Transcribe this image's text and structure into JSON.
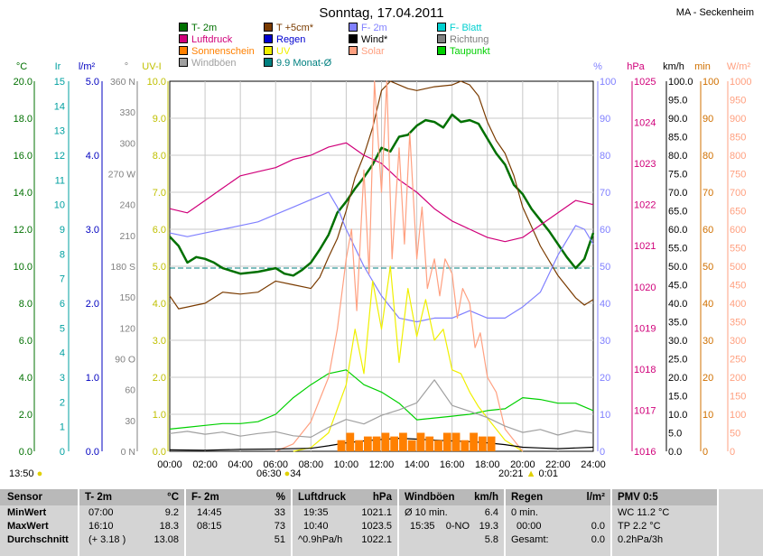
{
  "title": "Sonntag, 17.04.2011",
  "station": "MA - Seckenheim",
  "legend": [
    {
      "label": "T- 2m",
      "color": "#007000"
    },
    {
      "label": "T +5cm*",
      "color": "#7a3b00"
    },
    {
      "label": "F- 2m",
      "color": "#8080ff"
    },
    {
      "label": "F- Blatt",
      "color": "#00d0d0"
    },
    {
      "label": "Luftdruck",
      "color": "#d0007a"
    },
    {
      "label": "Regen",
      "color": "#0000d0"
    },
    {
      "label": "Wind*",
      "color": "#000000"
    },
    {
      "label": "Richtung",
      "color": "#808080"
    },
    {
      "label": "Sonnenschein",
      "color": "#ff8000"
    },
    {
      "label": "UV",
      "color": "#f0f000"
    },
    {
      "label": "Solar",
      "color": "#ffa080"
    },
    {
      "label": "Taupunkt",
      "color": "#00d000"
    },
    {
      "label": "Windböen",
      "color": "#a0a0a0"
    },
    {
      "label": "9.9 Monat-Ø",
      "color": "#008080"
    }
  ],
  "axes": {
    "temp": {
      "unit": "°C",
      "color": "#007000",
      "ticks": [
        "20.0",
        "18.0",
        "16.0",
        "14.0",
        "12.0",
        "10.0",
        "8.0",
        "6.0",
        "4.0",
        "2.0",
        "0.0"
      ]
    },
    "rain_ir": {
      "unit": "Ir",
      "color": "#00a0a0",
      "ticks": [
        "15",
        "14",
        "13",
        "12",
        "11",
        "10",
        "9",
        "8",
        "7",
        "6",
        "5",
        "4",
        "3",
        "2",
        "1",
        "0"
      ]
    },
    "rain": {
      "unit": "l/m²",
      "color": "#0000c0",
      "ticks": [
        "5.0",
        "4.0",
        "3.0",
        "2.0",
        "1.0",
        "0.0"
      ]
    },
    "dir": {
      "unit": "°",
      "color": "#808080",
      "ticks": [
        "360 N",
        "330",
        "300",
        "270 W",
        "240",
        "210",
        "180 S",
        "150",
        "120",
        "90 O",
        "60",
        "30",
        "0 N"
      ]
    },
    "uv": {
      "unit": "UV-I",
      "color": "#c0c000",
      "ticks": [
        "10.0",
        "9.0",
        "8.0",
        "7.0",
        "6.0",
        "5.0",
        "4.0",
        "3.0",
        "2.0",
        "1.0",
        "0.0"
      ]
    },
    "hum": {
      "unit": "%",
      "color": "#8080ff",
      "ticks": [
        "100",
        "90",
        "80",
        "70",
        "60",
        "50",
        "40",
        "30",
        "20",
        "10",
        "0"
      ]
    },
    "press": {
      "unit": "hPa",
      "color": "#d0007a",
      "ticks": [
        "1025",
        "1024",
        "1023",
        "1022",
        "1021",
        "1020",
        "1019",
        "1018",
        "1017",
        "1016"
      ]
    },
    "wind": {
      "unit": "km/h",
      "color": "#000000",
      "ticks": [
        "100.0",
        "95.0",
        "90.0",
        "85.0",
        "80.0",
        "75.0",
        "70.0",
        "65.0",
        "60.0",
        "55.0",
        "50.0",
        "45.0",
        "40.0",
        "35.0",
        "30.0",
        "25.0",
        "20.0",
        "15.0",
        "10.0",
        "5.0",
        "0.0"
      ]
    },
    "sunmin": {
      "unit": "min",
      "color": "#d07000",
      "ticks": [
        "100",
        "90",
        "80",
        "70",
        "60",
        "50",
        "40",
        "30",
        "20",
        "10",
        "0"
      ]
    },
    "solar": {
      "unit": "W/m²",
      "color": "#ffa080",
      "ticks": [
        "1000",
        "950",
        "900",
        "850",
        "800",
        "750",
        "700",
        "650",
        "600",
        "550",
        "500",
        "450",
        "400",
        "350",
        "300",
        "250",
        "200",
        "150",
        "100",
        "50",
        "0"
      ]
    }
  },
  "x_ticks": [
    "00:00",
    "02:00",
    "04:00",
    "06:00",
    "08:00",
    "10:00",
    "12:00",
    "14:00",
    "16:00",
    "18:00",
    "20:00",
    "22:00",
    "24:00"
  ],
  "sun_events": {
    "rise_moon": "13:50",
    "sunrise": "06:30",
    "sunrise_az": "34",
    "sunset": "20:21",
    "moonset": "0:01"
  },
  "chart_data": {
    "type": "line",
    "x_range": [
      0,
      24
    ],
    "ylim_temp": [
      0,
      20
    ],
    "series": [
      {
        "name": "T- 2m",
        "axis": "temp",
        "x": [
          0,
          0.5,
          1,
          1.5,
          2,
          2.5,
          3,
          4,
          5,
          6,
          6.5,
          7,
          7.5,
          8,
          8.5,
          9,
          9.5,
          10,
          10.5,
          11,
          11.5,
          12,
          12.5,
          13,
          13.5,
          14,
          14.5,
          15,
          15.5,
          16,
          16.5,
          17,
          17.5,
          18,
          18.5,
          19,
          19.5,
          20,
          20.5,
          21,
          21.5,
          22,
          22.5,
          23,
          23.5,
          24
        ],
        "values": [
          11.6,
          11.1,
          10.2,
          10.5,
          10.4,
          10.2,
          9.9,
          9.6,
          9.7,
          9.9,
          9.6,
          9.5,
          9.8,
          10.2,
          10.9,
          11.7,
          12.9,
          13.5,
          14.2,
          14.8,
          15.5,
          16.4,
          16.2,
          17.0,
          17.1,
          17.6,
          17.9,
          17.8,
          17.5,
          18.2,
          17.8,
          17.9,
          17.7,
          16.9,
          16.1,
          15.5,
          14.4,
          13.9,
          13.1,
          12.5,
          11.9,
          11.2,
          10.5,
          9.9,
          10.4,
          11.8
        ]
      },
      {
        "name": "T +5cm*",
        "axis": "temp",
        "x": [
          0,
          0.5,
          1,
          1.5,
          2,
          3,
          4,
          5,
          6,
          7,
          8,
          8.5,
          9,
          9.5,
          10,
          10.5,
          11,
          11.5,
          12,
          12.5,
          13,
          13.5,
          14,
          15,
          16,
          16.5,
          17,
          17.5,
          18,
          18.5,
          19,
          19.5,
          20,
          21,
          22,
          23,
          23.5,
          24
        ],
        "values": [
          8.4,
          7.7,
          7.8,
          7.9,
          8.0,
          8.6,
          8.5,
          8.6,
          9.2,
          9.0,
          8.8,
          9.4,
          10.5,
          11.5,
          13.0,
          14.8,
          16.0,
          17.5,
          19.5,
          20.0,
          19.8,
          19.6,
          19.5,
          19.7,
          19.8,
          20.0,
          19.8,
          19.2,
          17.8,
          16.8,
          16.1,
          14.9,
          13.2,
          11.1,
          9.5,
          8.3,
          7.9,
          8.2
        ]
      },
      {
        "name": "F- 2m",
        "axis": "hum",
        "x": [
          0,
          1,
          2,
          3,
          4,
          5,
          6,
          7,
          8,
          9,
          9.5,
          10,
          10.5,
          11,
          12,
          13,
          14,
          15,
          16,
          17,
          18,
          19,
          20,
          21,
          22,
          23,
          23.5,
          24
        ],
        "values": [
          59,
          58,
          59,
          60,
          61,
          62,
          64,
          66,
          68,
          70,
          66,
          60,
          55,
          50,
          42,
          36,
          35,
          36,
          36,
          38,
          36,
          36,
          39,
          43,
          53,
          61,
          60,
          56
        ]
      },
      {
        "name": "Luftdruck",
        "axis": "press",
        "x": [
          0,
          1,
          2,
          3,
          4,
          5,
          6,
          7,
          8,
          9,
          10,
          11,
          12,
          13,
          14,
          15,
          16,
          17,
          18,
          19,
          20,
          21,
          22,
          23,
          24
        ],
        "values": [
          1021.9,
          1021.8,
          1022.1,
          1022.4,
          1022.7,
          1022.8,
          1022.9,
          1023.1,
          1023.2,
          1023.4,
          1023.5,
          1023.2,
          1023.0,
          1022.6,
          1022.3,
          1021.9,
          1021.6,
          1021.4,
          1021.2,
          1021.1,
          1021.2,
          1021.5,
          1021.8,
          1022.1,
          1022.0
        ]
      },
      {
        "name": "Taupunkt",
        "axis": "temp",
        "x": [
          0,
          1,
          2,
          3,
          4,
          5,
          6,
          7,
          8,
          9,
          10,
          11,
          12,
          13,
          14,
          15,
          16,
          17,
          18,
          19,
          20,
          21,
          22,
          23,
          24
        ],
        "values": [
          1.2,
          1.3,
          1.4,
          1.5,
          1.5,
          1.6,
          2.0,
          2.9,
          3.6,
          4.2,
          4.4,
          3.6,
          3.2,
          2.6,
          1.7,
          1.8,
          1.9,
          2.0,
          2.2,
          2.3,
          2.9,
          2.8,
          2.6,
          2.6,
          2.2
        ]
      },
      {
        "name": "UV",
        "axis": "uv",
        "x": [
          7,
          8,
          9,
          10,
          10.5,
          11,
          11.5,
          12,
          12.5,
          13,
          13.5,
          14,
          14.5,
          15,
          15.5,
          16,
          16.5,
          17,
          17.5,
          18,
          19,
          20
        ],
        "values": [
          0,
          0.1,
          0.5,
          1.8,
          3.3,
          2.1,
          4.6,
          3.3,
          5.0,
          2.4,
          4.4,
          3.1,
          4.1,
          3.0,
          3.3,
          2.2,
          2.1,
          1.6,
          1.2,
          0.9,
          0.3,
          0
        ]
      },
      {
        "name": "Solar",
        "axis": "solar",
        "x": [
          6,
          7,
          8,
          9,
          9.5,
          10,
          10.3,
          10.6,
          11,
          11.3,
          11.6,
          12,
          12.3,
          12.6,
          13,
          13.3,
          13.6,
          14,
          14.3,
          14.6,
          15,
          15.3,
          15.6,
          16,
          16.3,
          16.6,
          17,
          17.3,
          17.6,
          18,
          18.5,
          19,
          20
        ],
        "values": [
          0,
          20,
          80,
          200,
          330,
          520,
          600,
          380,
          760,
          480,
          1000,
          700,
          1000,
          520,
          820,
          560,
          860,
          520,
          660,
          440,
          520,
          420,
          520,
          480,
          360,
          440,
          400,
          280,
          320,
          200,
          160,
          60,
          0
        ]
      },
      {
        "name": "Windböen",
        "axis": "wind",
        "x": [
          0,
          1,
          2,
          3,
          4,
          5,
          6,
          7,
          8,
          9,
          10,
          11,
          12,
          13,
          14,
          15,
          16,
          17,
          18,
          19,
          20,
          21,
          22,
          23,
          24
        ],
        "values": [
          4.8,
          5.4,
          4.6,
          5.2,
          4.1,
          4.8,
          5.3,
          4.2,
          3.8,
          6.5,
          8.6,
          7.4,
          9.7,
          11.2,
          13.1,
          19.3,
          12.4,
          10.8,
          9.1,
          6.8,
          5.1,
          5.9,
          4.4,
          5.6,
          4.9
        ]
      },
      {
        "name": "Wind*",
        "axis": "wind",
        "x": [
          0,
          2,
          4,
          6,
          8,
          9,
          10,
          11,
          12,
          13,
          14,
          15,
          16,
          17,
          18,
          19,
          20,
          21,
          22,
          23,
          24
        ],
        "values": [
          0.4,
          0.3,
          0.5,
          0.6,
          0.8,
          1.5,
          2.3,
          2.8,
          3.2,
          3.5,
          3.3,
          3.0,
          2.8,
          2.6,
          2.3,
          1.8,
          1.1,
          0.9,
          0.7,
          0.9,
          1.1
        ]
      },
      {
        "name": "Sonnenschein",
        "axis": "sunmin",
        "type": "bar",
        "x": [
          9.5,
          10,
          10.5,
          11,
          11.5,
          12,
          12.5,
          13,
          13.5,
          14,
          14.5,
          15,
          15.5,
          16,
          16.5,
          17,
          17.5,
          18
        ],
        "values": [
          3,
          5,
          3,
          4,
          4,
          5,
          4,
          5,
          3,
          5,
          4,
          3,
          5,
          5,
          3,
          5,
          4,
          4
        ]
      }
    ],
    "hlines": [
      {
        "name": "9.9 Monat-Ø",
        "axis": "temp",
        "value": 9.9
      }
    ]
  },
  "table": {
    "cols": [
      {
        "title": "Sensor",
        "unit": "",
        "rows": [
          "MinWert",
          "MaxWert",
          "Durchschnitt"
        ]
      },
      {
        "title": "T- 2m",
        "unit": "°C",
        "rows": [
          [
            "07:00",
            "9.2"
          ],
          [
            "16:10",
            "18.3"
          ],
          [
            "(+ 3.18 )",
            "13.08"
          ]
        ]
      },
      {
        "title": "F- 2m",
        "unit": "%",
        "rows": [
          [
            "14:45",
            "33"
          ],
          [
            "08:15",
            "73"
          ],
          [
            "",
            "51"
          ]
        ]
      },
      {
        "title": "Luftdruck",
        "unit": "hPa",
        "rows": [
          [
            "19:35",
            "1021.1"
          ],
          [
            "10:40",
            "1023.5"
          ],
          [
            "^0.9hPa/h",
            "1022.1"
          ]
        ]
      },
      {
        "title": "Windböen",
        "unit": "km/h",
        "rows": [
          [
            "Ø 10 min.",
            "6.4"
          ],
          [
            "15:35    0-NO",
            "19.3"
          ],
          [
            "",
            "5.8"
          ]
        ]
      },
      {
        "title": "Regen",
        "unit": "l/m²",
        "rows": [
          [
            "0 min.",
            ""
          ],
          [
            "00:00",
            "0.0"
          ],
          [
            "Gesamt:",
            "0.0"
          ]
        ]
      },
      {
        "title": "PMV 0:5",
        "unit": "",
        "rows": [
          "WC 11.2 °C",
          "TP 2.2 °C",
          "0.2hPa/3h"
        ]
      }
    ]
  }
}
